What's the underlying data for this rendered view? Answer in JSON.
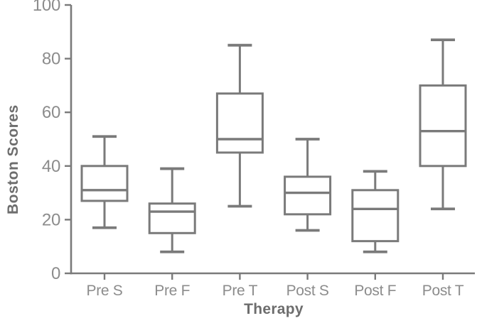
{
  "chart_data": {
    "type": "boxplot",
    "title": "",
    "xlabel": "Therapy",
    "ylabel": "Boston Scores",
    "ylim": [
      0,
      100
    ],
    "yticks": [
      0,
      20,
      40,
      60,
      80,
      100
    ],
    "categories": [
      "Pre S",
      "Pre F",
      "Pre T",
      "Post S",
      "Post F",
      "Post T"
    ],
    "series": [
      {
        "category": "Pre S",
        "whisker_low": 17,
        "q1": 27,
        "median": 31,
        "q3": 40,
        "whisker_high": 51
      },
      {
        "category": "Pre F",
        "whisker_low": 8,
        "q1": 15,
        "median": 23,
        "q3": 26,
        "whisker_high": 39
      },
      {
        "category": "Pre T",
        "whisker_low": 25,
        "q1": 45,
        "median": 50,
        "q3": 67,
        "whisker_high": 85
      },
      {
        "category": "Post S",
        "whisker_low": 16,
        "q1": 22,
        "median": 30,
        "q3": 36,
        "whisker_high": 50
      },
      {
        "category": "Post F",
        "whisker_low": 8,
        "q1": 12,
        "median": 24,
        "q3": 31,
        "whisker_high": 38
      },
      {
        "category": "Post T",
        "whisker_low": 24,
        "q1": 40,
        "median": 53,
        "q3": 70,
        "whisker_high": 87
      }
    ],
    "colors": {
      "line": "#7a7a7a",
      "tick_label": "#8c8c8c",
      "axis_title": "#6d6d6d",
      "background": "#ffffff",
      "box_fill": "#ffffff"
    },
    "grid": false,
    "legend_position": "none"
  }
}
